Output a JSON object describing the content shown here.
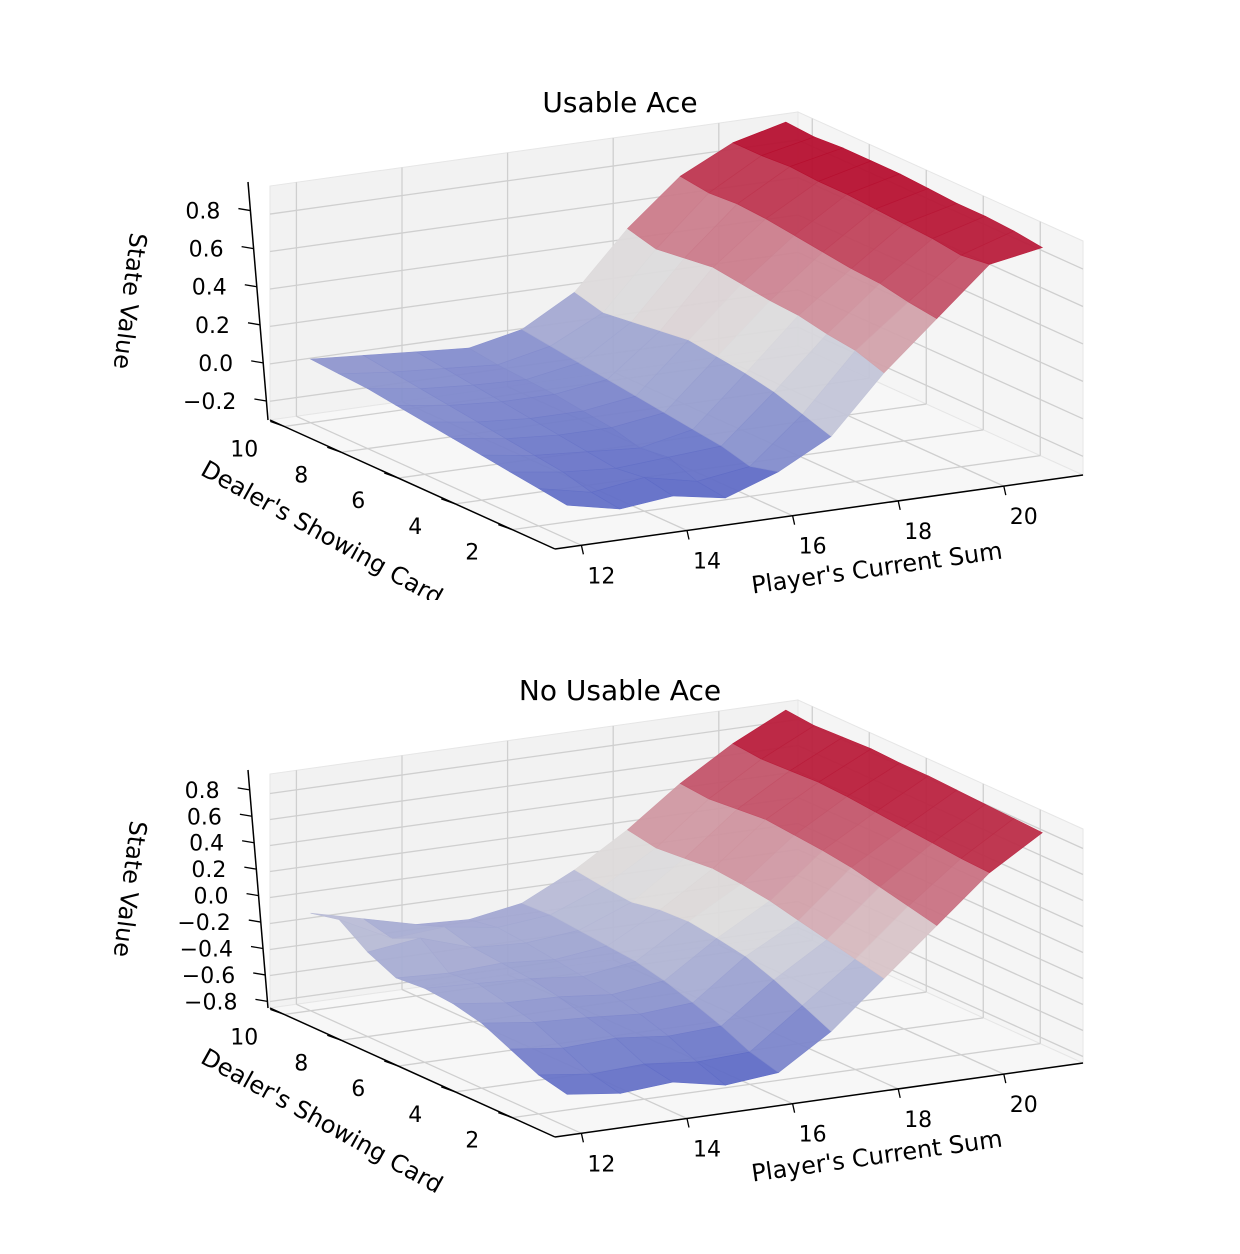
{
  "chart_data": [
    {
      "type": "surface",
      "title": "Usable Ace",
      "xlabel": "Player's Current Sum",
      "ylabel": "Dealer's Showing Card",
      "zlabel": "State Value",
      "x": [
        12,
        13,
        14,
        15,
        16,
        17,
        18,
        19,
        20,
        21
      ],
      "y": [
        1,
        2,
        3,
        4,
        5,
        6,
        7,
        8,
        9,
        10
      ],
      "x_ticks": [
        "12",
        "14",
        "16",
        "18",
        "20"
      ],
      "y_ticks": [
        "2",
        "4",
        "6",
        "8",
        "10"
      ],
      "z_ticks": [
        "−0.2",
        "0.0",
        "0.2",
        "0.4",
        "0.6",
        "0.8"
      ],
      "zlim": [
        -0.3,
        0.95
      ],
      "colormap": [
        "#3b4cc0",
        "#dddcdc",
        "#b40426"
      ],
      "grid": true,
      "z": [
        [
          -0.12,
          -0.18,
          -0.15,
          -0.2,
          -0.1,
          0.05,
          0.35,
          0.6,
          0.85,
          0.9
        ],
        [
          -0.1,
          -0.16,
          -0.12,
          -0.18,
          -0.14,
          0.1,
          0.4,
          0.62,
          0.83,
          0.92
        ],
        [
          -0.08,
          -0.12,
          -0.14,
          -0.12,
          -0.1,
          0.15,
          0.42,
          0.65,
          0.85,
          0.93
        ],
        [
          -0.06,
          -0.1,
          -0.12,
          -0.14,
          -0.08,
          0.18,
          0.45,
          0.66,
          0.86,
          0.93
        ],
        [
          -0.04,
          -0.08,
          -0.1,
          -0.1,
          -0.06,
          0.2,
          0.46,
          0.68,
          0.87,
          0.94
        ],
        [
          -0.02,
          -0.06,
          -0.08,
          -0.08,
          -0.04,
          0.22,
          0.48,
          0.7,
          0.88,
          0.95
        ],
        [
          0.0,
          -0.04,
          -0.06,
          -0.06,
          -0.02,
          0.2,
          0.5,
          0.72,
          0.88,
          0.95
        ],
        [
          0.02,
          -0.02,
          -0.04,
          -0.05,
          0.0,
          0.18,
          0.48,
          0.73,
          0.89,
          0.95
        ],
        [
          0.03,
          0.0,
          -0.02,
          -0.04,
          0.02,
          0.16,
          0.46,
          0.72,
          0.88,
          0.94
        ],
        [
          0.04,
          0.02,
          0.0,
          -0.02,
          0.04,
          0.2,
          0.5,
          0.74,
          0.88,
          0.95
        ]
      ]
    },
    {
      "type": "surface",
      "title": "No Usable Ace",
      "xlabel": "Player's Current Sum",
      "ylabel": "Dealer's Showing Card",
      "zlabel": "State Value",
      "x": [
        12,
        13,
        14,
        15,
        16,
        17,
        18,
        19,
        20,
        21
      ],
      "y": [
        1,
        2,
        3,
        4,
        5,
        6,
        7,
        8,
        9,
        10
      ],
      "x_ticks": [
        "12",
        "14",
        "16",
        "18",
        "20"
      ],
      "y_ticks": [
        "2",
        "4",
        "6",
        "8",
        "10"
      ],
      "z_ticks": [
        "−0.8",
        "−0.6",
        "−0.4",
        "−0.2",
        "0.0",
        "0.2",
        "0.4",
        "0.6",
        "0.8"
      ],
      "zlim": [
        -0.85,
        0.95
      ],
      "colormap": [
        "#3b4cc0",
        "#dddcdc",
        "#b40426"
      ],
      "grid": true,
      "z": [
        [
          -0.6,
          -0.65,
          -0.62,
          -0.7,
          -0.66,
          -0.4,
          -0.05,
          0.3,
          0.65,
          0.9
        ],
        [
          -0.55,
          -0.6,
          -0.58,
          -0.62,
          -0.6,
          -0.3,
          0.0,
          0.35,
          0.66,
          0.91
        ],
        [
          -0.45,
          -0.5,
          -0.48,
          -0.52,
          -0.5,
          -0.2,
          0.05,
          0.4,
          0.68,
          0.92
        ],
        [
          -0.35,
          -0.4,
          -0.42,
          -0.45,
          -0.42,
          -0.12,
          0.1,
          0.45,
          0.7,
          0.93
        ],
        [
          -0.3,
          -0.35,
          -0.36,
          -0.4,
          -0.35,
          -0.08,
          0.15,
          0.48,
          0.72,
          0.94
        ],
        [
          -0.28,
          -0.3,
          -0.32,
          -0.36,
          -0.3,
          -0.05,
          0.18,
          0.5,
          0.74,
          0.94
        ],
        [
          -0.3,
          -0.32,
          -0.3,
          -0.33,
          -0.28,
          -0.06,
          0.2,
          0.52,
          0.75,
          0.95
        ],
        [
          -0.2,
          -0.15,
          -0.28,
          -0.3,
          -0.26,
          -0.1,
          0.18,
          0.5,
          0.74,
          0.94
        ],
        [
          -0.05,
          -0.25,
          -0.22,
          -0.28,
          -0.24,
          -0.08,
          0.16,
          0.48,
          0.73,
          0.93
        ],
        [
          -0.1,
          -0.2,
          -0.3,
          -0.32,
          -0.25,
          -0.05,
          0.2,
          0.5,
          0.75,
          0.95
        ]
      ]
    }
  ]
}
